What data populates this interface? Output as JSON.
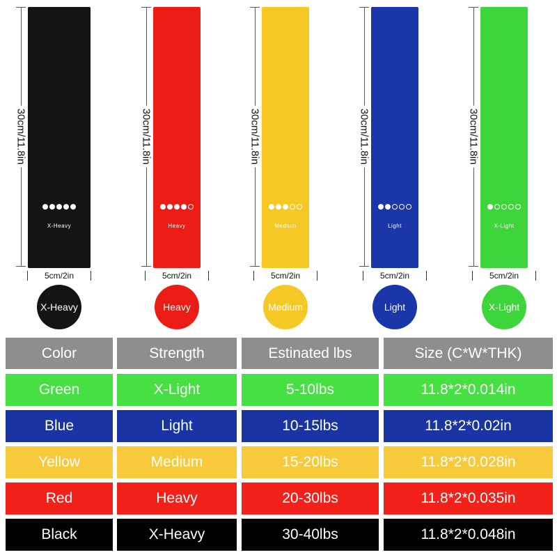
{
  "bands": [
    {
      "name": "X-Heavy",
      "color": "#141414",
      "level": 5,
      "length": "30cm/11.8in",
      "width": "5cm/2in"
    },
    {
      "name": "Heavy",
      "color": "#ea1c14",
      "level": 4,
      "length": "30cm/11.8in",
      "width": "5cm/2in"
    },
    {
      "name": "Medium",
      "color": "#f5c826",
      "level": 3,
      "length": "30cm/11.8in",
      "width": "5cm/2in"
    },
    {
      "name": "Light",
      "color": "#1a36a8",
      "level": 2,
      "length": "30cm/11.8in",
      "width": "5cm/2in"
    },
    {
      "name": "X-Light",
      "color": "#3ed43c",
      "level": 1,
      "length": "30cm/11.8in",
      "width": "5cm/2in"
    }
  ],
  "table": {
    "header_color": "#8e8e8e",
    "headers": [
      "Color",
      "Strength",
      "Estinated lbs",
      "Size (C*W*THK)"
    ],
    "rows": [
      {
        "bg": "#46e042",
        "cells": [
          "Green",
          "X-Light",
          "5-10lbs",
          "11.8*2*0.014in"
        ]
      },
      {
        "bg": "#1a35a3",
        "cells": [
          "Blue",
          "Light",
          "10-15lbs",
          "11.8*2*0.02in"
        ]
      },
      {
        "bg": "#f8c93a",
        "cells": [
          "Yellow",
          "Medium",
          "15-20lbs",
          "11.8*2*0.028in"
        ]
      },
      {
        "bg": "#f22119",
        "cells": [
          "Red",
          "Heavy",
          "20-30lbs",
          "11.8*2*0.035in"
        ]
      },
      {
        "bg": "#000000",
        "cells": [
          "Black",
          "X-Heavy",
          "30-40lbs",
          "11.8*2*0.048in"
        ]
      }
    ]
  }
}
